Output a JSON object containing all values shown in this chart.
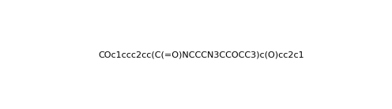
{
  "smiles": "COc1ccc2cc(C(=O)NCCCN3CCOCC3)c(O)cc2c1",
  "title": "",
  "bg_color": "#ffffff",
  "line_color": "#000000",
  "figsize": [
    4.96,
    1.38
  ],
  "dpi": 100
}
